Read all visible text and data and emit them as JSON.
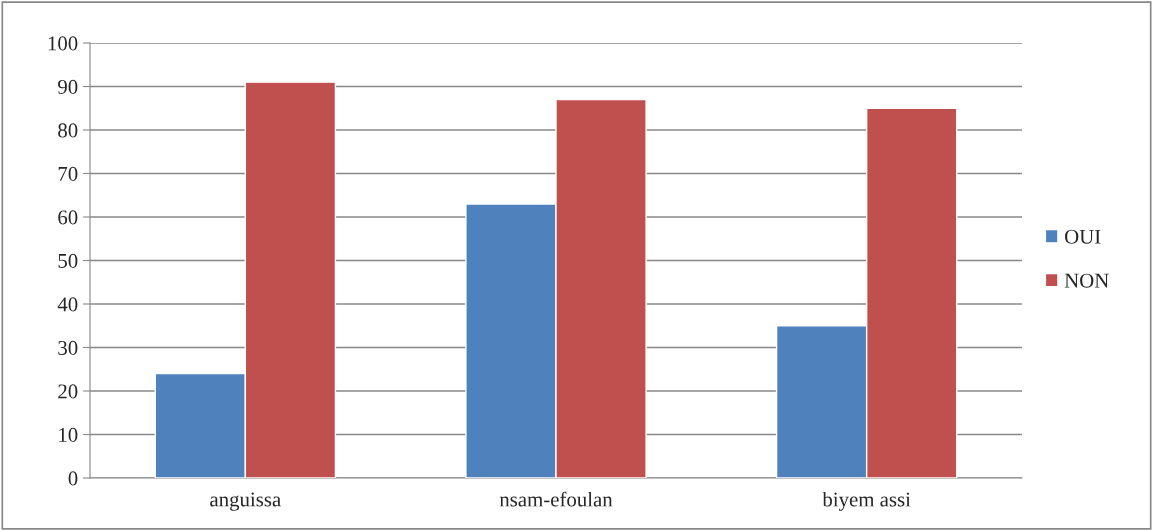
{
  "chart_data": {
    "type": "bar",
    "categories": [
      "anguissa",
      "nsam-efoulan",
      "biyem assi"
    ],
    "series": [
      {
        "name": "OUI",
        "color": "#4f81bd",
        "values": [
          24,
          63,
          35
        ]
      },
      {
        "name": "NON",
        "color": "#c0504d",
        "values": [
          91,
          87,
          85
        ]
      }
    ],
    "ylim": [
      0,
      100
    ],
    "yticks": [
      0,
      10,
      20,
      30,
      40,
      50,
      60,
      70,
      80,
      90,
      100
    ],
    "grid": "y",
    "legend": "right"
  }
}
